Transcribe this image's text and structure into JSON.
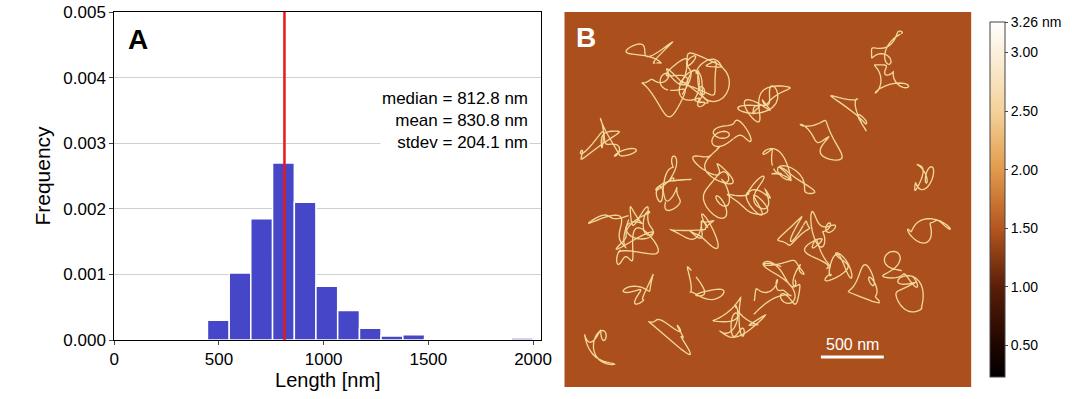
{
  "chart_data": [
    {
      "type": "histogram",
      "panel": "A",
      "bins": [
        445,
        549,
        652,
        756,
        860,
        963,
        1067,
        1171,
        1274,
        1378,
        1482,
        1585,
        1689,
        1793,
        1896,
        2000
      ],
      "values": [
        0.0003,
        0.00102,
        0.00185,
        0.0027,
        0.0021,
        0.00082,
        0.00045,
        0.00018,
        6e-05,
        8e-05,
        2e-05,
        2e-05,
        2e-05,
        0.0,
        3e-05
      ],
      "color": "#4646c8",
      "xlabel": "Length [nm]",
      "ylabel": "Frequency",
      "xlim": [
        0,
        2040
      ],
      "ylim": [
        0,
        0.005
      ],
      "xticks": [
        0,
        500,
        1000,
        1500,
        2000
      ],
      "yticks": [
        {
          "value": 0,
          "label": "0.000"
        },
        {
          "value": 0.001,
          "label": "0.001"
        },
        {
          "value": 0.002,
          "label": "0.002"
        },
        {
          "value": 0.003,
          "label": "0.003"
        },
        {
          "value": 0.004,
          "label": "0.004"
        },
        {
          "value": 0.005,
          "label": "0.005"
        }
      ],
      "grid": true,
      "median_line": {
        "x": 812.8,
        "color": "#e8191a"
      },
      "annotations": [
        "median = 812.8 nm",
        "mean = 830.8 nm",
        "stdev = 204.1 nm"
      ]
    },
    {
      "type": "image",
      "panel": "B",
      "xlim": [
        0,
        3240
      ],
      "ylim": [
        0,
        2960
      ],
      "z": [
        [
          1.45
        ]
      ],
      "tick_labels": false,
      "colorbar": {
        "range": [
          0.23,
          3.26
        ],
        "ticks": [
          {
            "value": 3.26,
            "label": "3.26 nm"
          },
          {
            "value": 3,
            "label": "3.00"
          },
          {
            "value": 2.5,
            "label": "2.50"
          },
          {
            "value": 2,
            "label": "2.00"
          },
          {
            "value": 1.5,
            "label": "1.50"
          },
          {
            "value": 1,
            "label": "1.00"
          },
          {
            "value": 0.5,
            "label": "0.50"
          }
        ]
      },
      "scale_bar": {
        "length": 500,
        "label": "500 nm",
        "color": "#ffffff"
      }
    }
  ]
}
